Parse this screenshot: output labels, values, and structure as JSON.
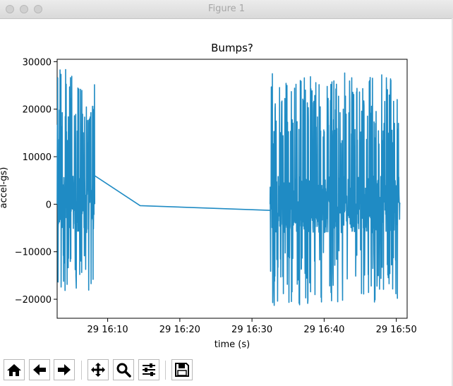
{
  "window": {
    "title": "Figure 1"
  },
  "chart_data": {
    "type": "line",
    "title": "Bumps?",
    "xlabel": "time (s)",
    "ylabel": "accel-gs)",
    "ylim": [
      -24000,
      30500
    ],
    "xlim_minutes": [
      3,
      51.5
    ],
    "y_ticks": [
      -20000,
      -10000,
      0,
      10000,
      20000,
      30000
    ],
    "y_tick_labels": [
      "−20000",
      "−10000",
      "0",
      "10000",
      "20000",
      "30000"
    ],
    "x_ticks_minutes": [
      10,
      20,
      30,
      40,
      50
    ],
    "x_tick_labels": [
      "29 16:10",
      "29 16:20",
      "29 16:30",
      "29 16:40",
      "29 16:50"
    ],
    "series_color": "#1f8bc4",
    "series": [
      {
        "name": "accel",
        "bursts": [
          {
            "start_min": 3.0,
            "end_min": 8.2,
            "max": 28500,
            "min": -18600
          },
          {
            "start_min": 32.5,
            "end_min": 50.5,
            "max": 27800,
            "min": -21300
          }
        ],
        "connector": [
          {
            "x_min": 8.2,
            "y": 6000
          },
          {
            "x_min": 14.5,
            "y": -300
          },
          {
            "x_min": 32.5,
            "y": -1300
          }
        ]
      }
    ]
  },
  "toolbar": {
    "buttons": [
      {
        "name": "home",
        "icon": "home-icon"
      },
      {
        "name": "back",
        "icon": "arrow-left-icon"
      },
      {
        "name": "forward",
        "icon": "arrow-right-icon"
      },
      {
        "name": "pan",
        "icon": "move-icon"
      },
      {
        "name": "zoom",
        "icon": "magnifier-icon"
      },
      {
        "name": "configure",
        "icon": "sliders-icon"
      },
      {
        "name": "save",
        "icon": "floppy-icon"
      }
    ]
  }
}
